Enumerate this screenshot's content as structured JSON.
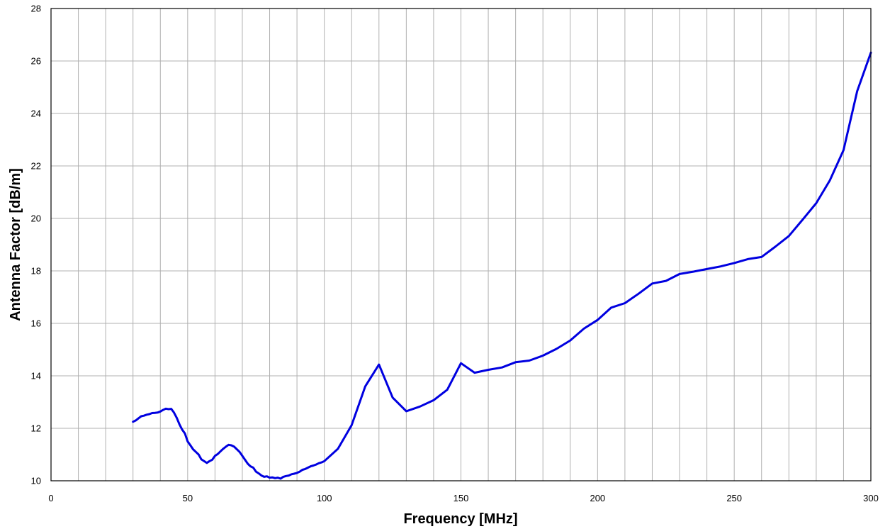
{
  "chart_data": {
    "type": "line",
    "title": "",
    "xlabel": "Frequency [MHz]",
    "ylabel": "Antenna Factor [dB/m]",
    "xlim": [
      0,
      300
    ],
    "ylim": [
      10,
      28
    ],
    "x_ticks": [
      0,
      50,
      100,
      150,
      200,
      250,
      300
    ],
    "y_ticks": [
      10,
      12,
      14,
      16,
      18,
      20,
      22,
      24,
      26,
      28
    ],
    "grid": true,
    "legend": "none",
    "colors": {
      "line": "#0000e0",
      "grid": "#b0b0b0",
      "frame": "#000000"
    },
    "series": [
      {
        "x": [
          30,
          31,
          32,
          33,
          34,
          35,
          36,
          37,
          38,
          39,
          40,
          41,
          42,
          43,
          44,
          45,
          46,
          47,
          48,
          49,
          50,
          51,
          52,
          53,
          54,
          55,
          56,
          57,
          58,
          59,
          60,
          61,
          62,
          63,
          64,
          65,
          66,
          67,
          68,
          69,
          70,
          71,
          72,
          73,
          74,
          75,
          76,
          77,
          78,
          79,
          80,
          81,
          82,
          83,
          84,
          85,
          86,
          87,
          88,
          89,
          90,
          91,
          92,
          93,
          94,
          95,
          96,
          97,
          98,
          99,
          100,
          105,
          110,
          115,
          120,
          125,
          130,
          135,
          140,
          145,
          150,
          155,
          160,
          165,
          170,
          175,
          180,
          185,
          190,
          195,
          200,
          205,
          210,
          215,
          220,
          225,
          230,
          235,
          240,
          245,
          250,
          255,
          260,
          265,
          270,
          275,
          280,
          285,
          290,
          295,
          300
        ],
        "y": [
          12.25,
          12.3,
          12.38,
          12.46,
          12.48,
          12.52,
          12.54,
          12.58,
          12.59,
          12.6,
          12.64,
          12.7,
          12.75,
          12.73,
          12.74,
          12.6,
          12.4,
          12.15,
          11.95,
          11.8,
          11.5,
          11.35,
          11.2,
          11.1,
          11.0,
          10.82,
          10.75,
          10.68,
          10.75,
          10.8,
          10.95,
          11.02,
          11.12,
          11.22,
          11.3,
          11.37,
          11.35,
          11.3,
          11.2,
          11.1,
          10.95,
          10.8,
          10.65,
          10.55,
          10.5,
          10.35,
          10.28,
          10.2,
          10.15,
          10.17,
          10.12,
          10.13,
          10.1,
          10.12,
          10.08,
          10.15,
          10.18,
          10.2,
          10.25,
          10.27,
          10.3,
          10.35,
          10.42,
          10.45,
          10.5,
          10.55,
          10.58,
          10.62,
          10.67,
          10.7,
          10.75,
          11.22,
          12.12,
          13.6,
          14.43,
          13.17,
          12.65,
          12.83,
          13.07,
          13.47,
          14.48,
          14.12,
          14.23,
          14.32,
          14.52,
          14.58,
          14.77,
          15.03,
          15.35,
          15.8,
          16.13,
          16.6,
          16.77,
          17.13,
          17.52,
          17.62,
          17.88,
          17.97,
          18.07,
          18.17,
          18.3,
          18.45,
          18.53,
          18.92,
          19.33,
          19.95,
          20.58,
          21.45,
          22.6,
          24.85,
          26.32
        ]
      }
    ]
  }
}
